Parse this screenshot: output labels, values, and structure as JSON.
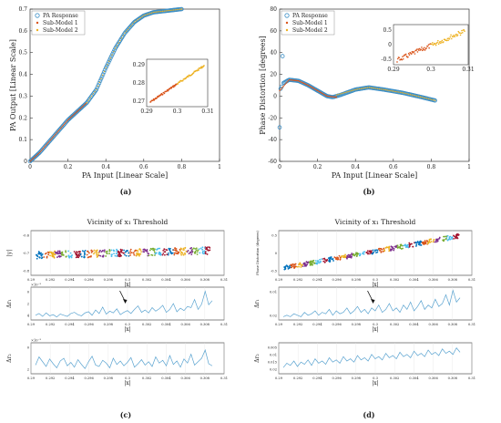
{
  "figure": {
    "captions": [
      "(a)",
      "(b)",
      "(c)",
      "(d)"
    ]
  },
  "colors": {
    "pa_response": "#3d8fc6",
    "sub_model_1": "#d95319",
    "sub_model_2": "#edb120",
    "series_line": "#5aa3d0",
    "cluster_palette": [
      "#0072bd",
      "#d95319",
      "#edb120",
      "#7e2f8e",
      "#77ac30",
      "#4dbeee",
      "#a2142f"
    ]
  },
  "chart_data": [
    {
      "id": "a",
      "type": "scatter",
      "xlabel": "PA Input [Linear Scale]",
      "ylabel": "PA Output [Linear Scale]",
      "xlim": [
        0,
        1
      ],
      "ylim": [
        0,
        0.7
      ],
      "xticks": [
        0,
        0.2,
        0.4,
        0.6,
        0.8,
        1
      ],
      "yticks": [
        0,
        0.1,
        0.2,
        0.3,
        0.4,
        0.5,
        0.6,
        0.7
      ],
      "legend_position": "top-left",
      "series": [
        {
          "name": "PA Response",
          "x": [
            0,
            0.05,
            0.1,
            0.15,
            0.2,
            0.25,
            0.3,
            0.35,
            0.4,
            0.45,
            0.5,
            0.55,
            0.6,
            0.65,
            0.7,
            0.75,
            0.8
          ],
          "y": [
            0,
            0.04,
            0.09,
            0.14,
            0.19,
            0.23,
            0.27,
            0.33,
            0.43,
            0.52,
            0.59,
            0.64,
            0.67,
            0.685,
            0.69,
            0.695,
            0.7
          ]
        },
        {
          "name": "Sub-Model 1",
          "x": [
            0,
            0.05,
            0.1,
            0.15,
            0.2,
            0.25,
            0.3
          ],
          "y": [
            0,
            0.04,
            0.09,
            0.14,
            0.19,
            0.23,
            0.27
          ]
        },
        {
          "name": "Sub-Model 2",
          "x": [
            0.3,
            0.35,
            0.4,
            0.45,
            0.5,
            0.55,
            0.6,
            0.65,
            0.7,
            0.75,
            0.8
          ],
          "y": [
            0.27,
            0.33,
            0.43,
            0.52,
            0.59,
            0.64,
            0.67,
            0.685,
            0.69,
            0.695,
            0.7
          ]
        }
      ],
      "inset": {
        "xlim": [
          0.29,
          0.31
        ],
        "ylim": [
          0.265,
          0.29
        ],
        "xticks": [
          "0.29",
          "0.3",
          "0.31"
        ],
        "yticks": [
          "0.27",
          "0.28",
          "0.29"
        ]
      }
    },
    {
      "id": "b",
      "type": "scatter",
      "xlabel": "PA Input [Linear Scale]",
      "ylabel": "Phase Distortion [degrees]",
      "xlim": [
        0,
        1
      ],
      "ylim": [
        -60,
        80
      ],
      "xticks": [
        0,
        0.2,
        0.4,
        0.6,
        0.8,
        1
      ],
      "yticks": [
        -60,
        -40,
        -20,
        0,
        20,
        40,
        60,
        80
      ],
      "legend_position": "top-left",
      "series": [
        {
          "name": "PA Response",
          "x": [
            0,
            0.02,
            0.05,
            0.1,
            0.15,
            0.2,
            0.25,
            0.28,
            0.32,
            0.4,
            0.47,
            0.55,
            0.65,
            0.75,
            0.82
          ],
          "y": [
            5,
            12,
            15,
            14,
            10,
            5,
            0,
            -1,
            1,
            6,
            8,
            6,
            3,
            -1,
            -4
          ]
        },
        {
          "name": "Sub-Model 1",
          "x": [
            0,
            0.05,
            0.1,
            0.15,
            0.2,
            0.25,
            0.3
          ],
          "y": [
            5,
            15,
            14,
            10,
            5,
            0,
            -1
          ]
        },
        {
          "name": "Sub-Model 2",
          "x": [
            0.3,
            0.4,
            0.47,
            0.55,
            0.65,
            0.75,
            0.82
          ],
          "y": [
            1,
            6,
            8,
            6,
            3,
            -1,
            -4
          ]
        }
      ],
      "inset": {
        "xlim": [
          0.29,
          0.31
        ],
        "ylim": [
          -0.6,
          1.0
        ],
        "xticks": [
          "0.29",
          "0.3",
          "0.31"
        ],
        "yticks": [
          "-0.5",
          "0",
          "0.5"
        ]
      }
    },
    {
      "id": "c",
      "type": "scatter",
      "title": "Vicinity of x₁ Threshold",
      "subplots": [
        {
          "ylabel": "|y|",
          "xlabel": "|x|",
          "ylim": [
            -0.8,
            -0.6
          ],
          "yticks": [
            "-0.6",
            "-0.7",
            "-0.8"
          ],
          "cluster_range": [
            -0.77,
            -0.7
          ]
        },
        {
          "ylabel": "Δr₁",
          "xlabel": "|x|",
          "exponent": "×10⁻³",
          "ylim": [
            0,
            5
          ],
          "yticks": [
            "0",
            "2",
            "4"
          ],
          "values": [
            0.5,
            0.8,
            0.3,
            0.9,
            0.4,
            0.6,
            0.2,
            0.7,
            0.5,
            0.3,
            0.8,
            1.0,
            0.6,
            0.4,
            0.9,
            1.1,
            0.5,
            1.4,
            0.8,
            1.9,
            0.7,
            1.2,
            0.9,
            1.6,
            0.6,
            1.0,
            1.3,
            0.8,
            1.5,
            2.1,
            1.0,
            1.4,
            0.9,
            1.8,
            1.2,
            1.6,
            2.2,
            1.0,
            1.5,
            2.5,
            1.1,
            1.7,
            1.3,
            2.0,
            1.8,
            3.2,
            1.5,
            2.4,
            4.6,
            2.3,
            3.0
          ]
        },
        {
          "ylabel": "Δr₂",
          "xlabel": "|x|",
          "exponent": "×10⁻³",
          "ylim": [
            0,
            4
          ],
          "yticks": [
            "0",
            "2"
          ],
          "values": [
            1.0,
            2.2,
            1.5,
            0.8,
            1.9,
            1.2,
            0.6,
            1.6,
            2.0,
            0.9,
            1.4,
            0.7,
            1.8,
            1.1,
            0.5,
            1.5,
            2.3,
            1.0,
            0.8,
            1.7,
            1.3,
            0.6,
            2.0,
            1.1,
            1.6,
            0.9,
            1.4,
            2.1,
            0.7,
            1.2,
            1.8,
            1.0,
            1.5,
            0.8,
            2.2,
            1.3,
            1.7,
            0.9,
            2.4,
            1.1,
            1.6,
            0.7,
            1.9,
            1.3,
            2.6,
            1.0,
            1.5,
            2.0,
            3.2,
            1.2,
            0.9
          ]
        }
      ],
      "xlim": [
        0.29,
        0.31
      ],
      "xticks": [
        "0.29",
        "0.292",
        "0.294",
        "0.296",
        "0.298",
        "0.3",
        "0.302",
        "0.304",
        "0.306",
        "0.308",
        "0.31"
      ]
    },
    {
      "id": "d",
      "type": "scatter",
      "title": "Vicinity of x₁ Threshold",
      "subplots": [
        {
          "ylabel": "Phase Distortion (degrees)",
          "xlabel": "|x|",
          "ylim": [
            -0.6,
            0.6
          ],
          "yticks": [
            "0.5",
            "0",
            "-0.5"
          ],
          "cluster_range": [
            -0.5,
            0.45
          ]
        },
        {
          "ylabel": "Δr₁",
          "xlabel": "|x|",
          "ylim": [
            0,
            0.02
          ],
          "yticks": [
            "0.01",
            "0.02"
          ],
          "values": [
            0.001,
            0.002,
            0.001,
            0.003,
            0.002,
            0.001,
            0.004,
            0.002,
            0.003,
            0.005,
            0.002,
            0.004,
            0.003,
            0.006,
            0.002,
            0.005,
            0.003,
            0.004,
            0.007,
            0.003,
            0.005,
            0.008,
            0.004,
            0.006,
            0.003,
            0.007,
            0.005,
            0.009,
            0.004,
            0.006,
            0.01,
            0.005,
            0.007,
            0.004,
            0.009,
            0.006,
            0.011,
            0.005,
            0.008,
            0.012,
            0.006,
            0.009,
            0.007,
            0.013,
            0.008,
            0.01,
            0.016,
            0.009,
            0.019,
            0.011,
            0.014
          ]
        },
        {
          "ylabel": "Δr₂",
          "xlabel": "|x|",
          "ylim": [
            0,
            0.025
          ],
          "yticks": [
            "0.005",
            "0.01",
            "0.015",
            "0.02"
          ],
          "values": [
            0.004,
            0.008,
            0.006,
            0.01,
            0.005,
            0.009,
            0.007,
            0.011,
            0.006,
            0.012,
            0.008,
            0.01,
            0.007,
            0.013,
            0.009,
            0.011,
            0.008,
            0.014,
            0.01,
            0.012,
            0.009,
            0.015,
            0.011,
            0.013,
            0.01,
            0.016,
            0.012,
            0.014,
            0.011,
            0.017,
            0.013,
            0.015,
            0.012,
            0.018,
            0.014,
            0.016,
            0.013,
            0.019,
            0.015,
            0.017,
            0.014,
            0.02,
            0.016,
            0.018,
            0.015,
            0.021,
            0.017,
            0.019,
            0.016,
            0.022,
            0.018
          ]
        }
      ],
      "xlim": [
        0.29,
        0.31
      ],
      "xticks": [
        "0.29",
        "0.292",
        "0.294",
        "0.296",
        "0.298",
        "0.3",
        "0.302",
        "0.304",
        "0.306",
        "0.308",
        "0.31"
      ]
    }
  ]
}
